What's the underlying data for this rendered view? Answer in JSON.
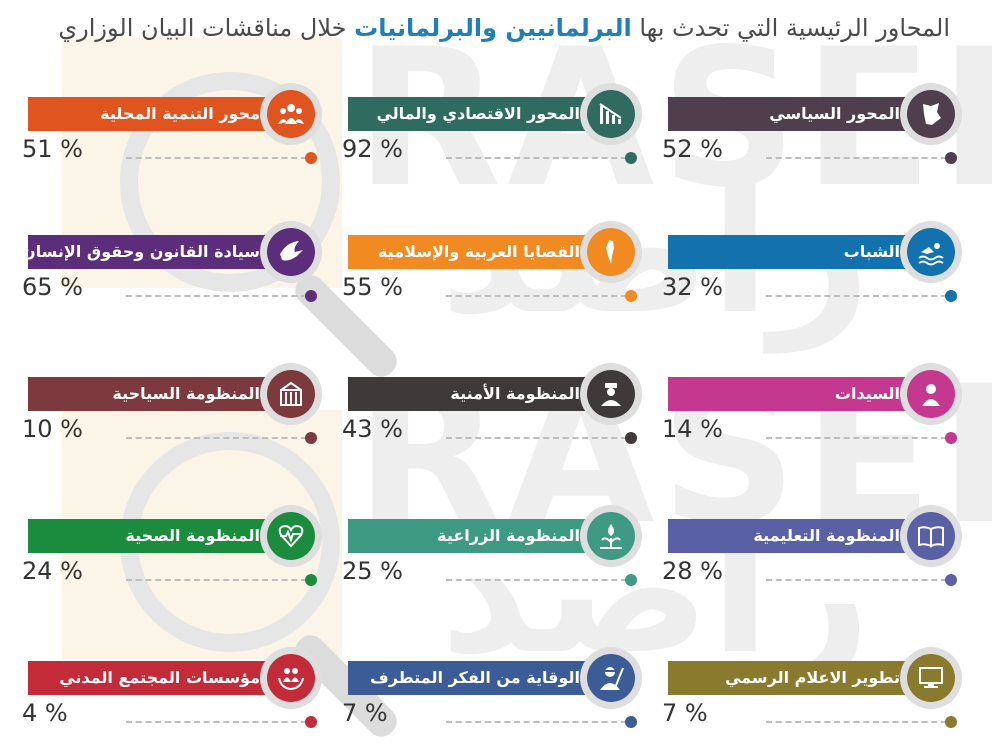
{
  "title": {
    "before": "المحاور الرئيسية التي تحدث بها",
    "highlight": "البرلمانيين والبرلمانيات",
    "after": "خلال مناقشات البيان الوزاري"
  },
  "watermark": {
    "latin": "RASED",
    "arabic": "راصد"
  },
  "items": [
    {
      "label": "المحور السياسي",
      "percent": "52 %",
      "color": "#4f3e4b",
      "icon": "jordan-map-icon"
    },
    {
      "label": "المحور الاقتصادي والمالي",
      "percent": "92 %",
      "color": "#2f6b5e",
      "icon": "chart-decline-icon"
    },
    {
      "label": "محور التنمية المحلية",
      "percent": "51 %",
      "color": "#e0541f",
      "icon": "people-group-icon"
    },
    {
      "label": "الشباب",
      "percent": "32 %",
      "color": "#1272ad",
      "icon": "swimmer-icon"
    },
    {
      "label": "القضايا العربية والإسلامية",
      "percent": "55 %",
      "color": "#f28a22",
      "icon": "palestine-map-icon"
    },
    {
      "label": "سيادة القانون وحقوق الإنسان",
      "percent": "65 %",
      "color": "#5b2d7a",
      "icon": "dove-icon"
    },
    {
      "label": "السيدات",
      "percent": "14 %",
      "color": "#c5388f",
      "icon": "woman-icon"
    },
    {
      "label": "المنظومة الأمنية",
      "percent": "43 %",
      "color": "#3d3a39",
      "icon": "police-officer-icon"
    },
    {
      "label": "المنظومة السياحية",
      "percent": "10 %",
      "color": "#7c3a3e",
      "icon": "petra-treasury-icon"
    },
    {
      "label": "المنظومة التعليمية",
      "percent": "28 %",
      "color": "#5a60a6",
      "icon": "open-book-icon"
    },
    {
      "label": "المنظومة الزراعية",
      "percent": "25 %",
      "color": "#3e9a83",
      "icon": "plant-drop-icon"
    },
    {
      "label": "المنظومة الصحية",
      "percent": "24 %",
      "color": "#1b8c3e",
      "icon": "heart-pulse-icon"
    },
    {
      "label": "تطوير الاعلام الرسمي",
      "percent": "7 %",
      "color": "#8a7a2d",
      "icon": "monitor-icon"
    },
    {
      "label": "الوقاية من الفكر المتطرف",
      "percent": "7 %",
      "color": "#3b5c96",
      "icon": "armed-man-icon"
    },
    {
      "label": "مؤسسات المجتمع المدني",
      "percent": "4 %",
      "color": "#c42b38",
      "icon": "family-hands-icon"
    }
  ]
}
